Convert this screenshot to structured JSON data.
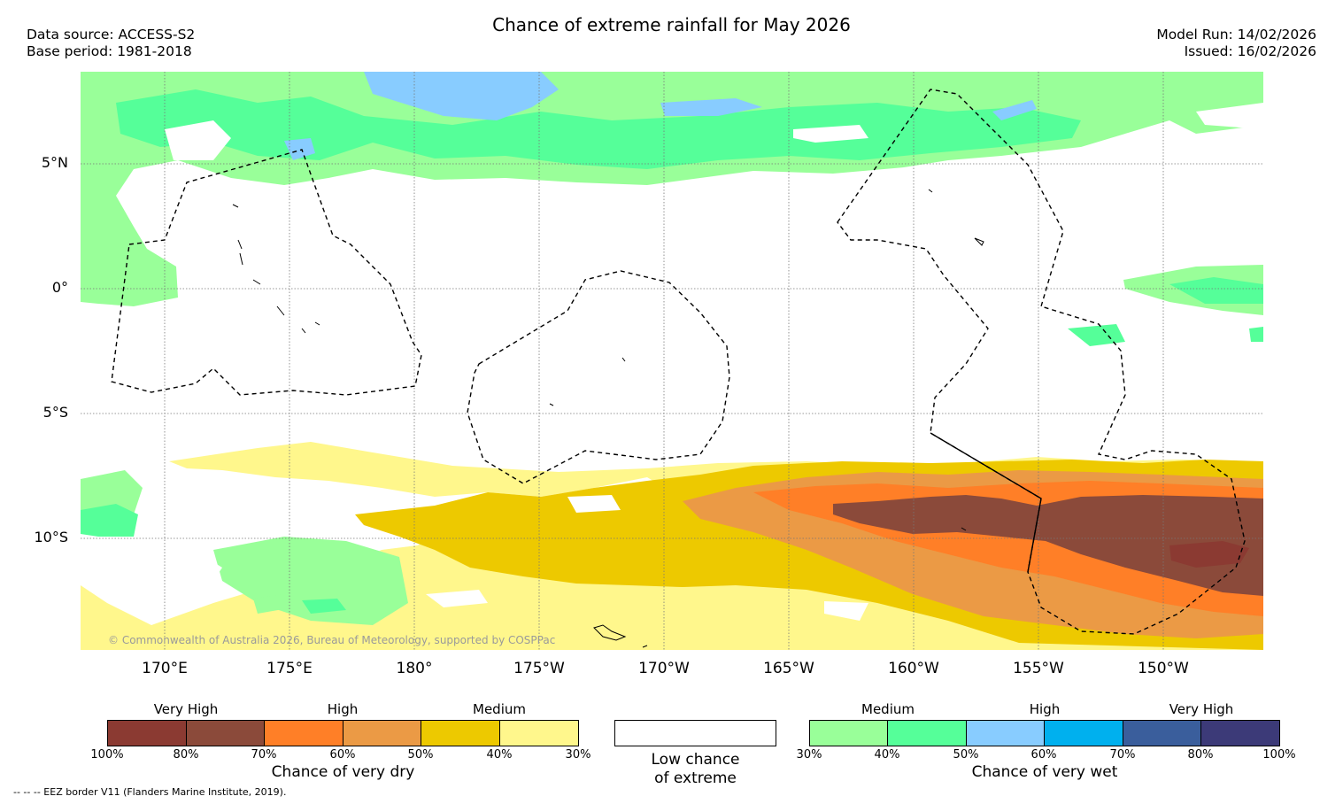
{
  "title": "Chance of extreme rainfall for May 2026",
  "header": {
    "data_source": "Data source: ACCESS-S2",
    "base_period": "Base period: 1981-2018",
    "model_run": "Model Run: 14/02/2026",
    "issued": "Issued: 16/02/2026"
  },
  "map": {
    "lat_labels": [
      "5°N",
      "0°",
      "5°S",
      "10°S"
    ],
    "lon_labels": [
      "170°E",
      "175°E",
      "180°",
      "175°W",
      "170°W",
      "165°W",
      "160°W",
      "155°W",
      "150°W"
    ],
    "copyright": "© Commonwealth of Australia 2026, Bureau of Meteorology, supported by COSPPac"
  },
  "legend": {
    "dry": {
      "headers": [
        "Very High",
        "High",
        "Medium"
      ],
      "ticks": [
        "100%",
        "80%",
        "70%",
        "60%",
        "50%",
        "40%",
        "30%"
      ],
      "caption": "Chance of very dry",
      "colors": [
        "#8b3a32",
        "#8b4a3a",
        "#ff7f27",
        "#eb9a45",
        "#edc900",
        "#fff78c"
      ]
    },
    "low": {
      "caption_line1": "Low chance",
      "caption_line2": "of extreme",
      "color": "#ffffff"
    },
    "wet": {
      "headers": [
        "Medium",
        "High",
        "Very High"
      ],
      "ticks": [
        "30%",
        "40%",
        "50%",
        "60%",
        "70%",
        "80%",
        "100%"
      ],
      "caption": "Chance of very wet",
      "colors": [
        "#99ff99",
        "#55ff99",
        "#88ccff",
        "#00b0ee",
        "#3a5e9c",
        "#3c3a78"
      ]
    }
  },
  "footnote": "--  --  -- EEZ border V11 (Flanders Marine Institute, 2019)."
}
